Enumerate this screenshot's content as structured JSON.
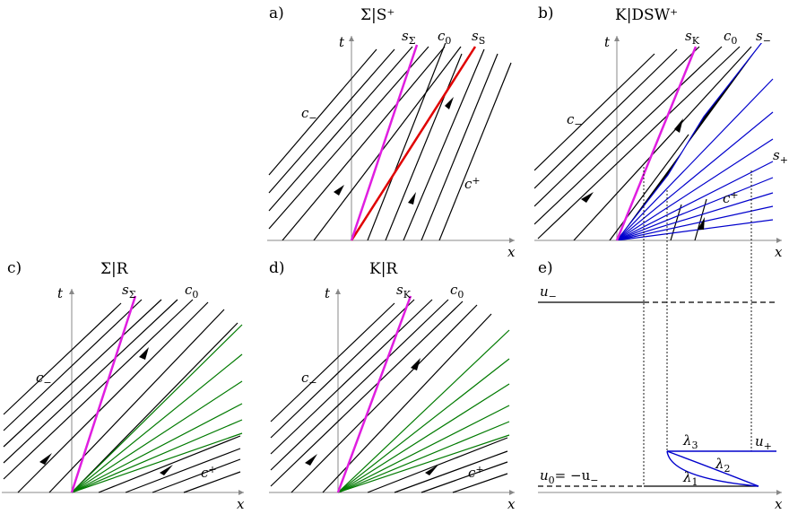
{
  "panels": {
    "a": {
      "tag": "a)",
      "title": "Σ|S⁺",
      "labels": {
        "t": "t",
        "x": "x",
        "s_sigma": "s",
        "s_sigma_sub": "Σ",
        "c0": "c",
        "c0_sub": "0",
        "s_s": "s",
        "s_s_sub": "S",
        "c_minus": "c",
        "c_minus_sub": "−",
        "c_plus": "c",
        "c_plus_sub": "+"
      }
    },
    "b": {
      "tag": "b)",
      "title": "K|DSW⁺",
      "labels": {
        "t": "t",
        "x": "x",
        "s_k": "s",
        "s_k_sub": "K",
        "c0": "c",
        "c0_sub": "0",
        "s_minus": "s",
        "s_minus_sub": "−",
        "s_plus": "s",
        "s_plus_sub": "+",
        "c_minus": "c",
        "c_minus_sub": "−",
        "c_plus": "c",
        "c_plus_sub": "+"
      }
    },
    "c": {
      "tag": "c)",
      "title": "Σ|R",
      "labels": {
        "t": "t",
        "x": "x",
        "s_sigma": "s",
        "s_sigma_sub": "Σ",
        "c0": "c",
        "c0_sub": "0",
        "c_minus": "c",
        "c_minus_sub": "−",
        "c_plus": "c",
        "c_plus_sub": "+"
      }
    },
    "d": {
      "tag": "d)",
      "title": "K|R",
      "labels": {
        "t": "t",
        "x": "x",
        "s_k": "s",
        "s_k_sub": "K",
        "c0": "c",
        "c0_sub": "0",
        "c_minus": "c",
        "c_minus_sub": "−",
        "c_plus": "c",
        "c_plus_sub": "+"
      }
    },
    "e": {
      "tag": "e)",
      "labels": {
        "x": "x",
        "u_minus": "u",
        "u_minus_sub": "−",
        "u0_lhs": "u",
        "u0_lhs_sub": "0",
        "u0_eq": "= −u",
        "u0_rhs_sub": "−",
        "u_plus": "u",
        "u_plus_sub": "+",
        "lambda1": "λ",
        "lambda1_sub": "1",
        "lambda2": "λ",
        "lambda2_sub": "2",
        "lambda3": "λ",
        "lambda3_sub": "3"
      }
    }
  },
  "colors": {
    "characteristic": "#000000",
    "shock_sigma": "#e01ee0",
    "shock_s": "#e00000",
    "dsw_fan": "#0000cc",
    "rarefaction_fan": "#007a00",
    "axis": "#888888"
  }
}
